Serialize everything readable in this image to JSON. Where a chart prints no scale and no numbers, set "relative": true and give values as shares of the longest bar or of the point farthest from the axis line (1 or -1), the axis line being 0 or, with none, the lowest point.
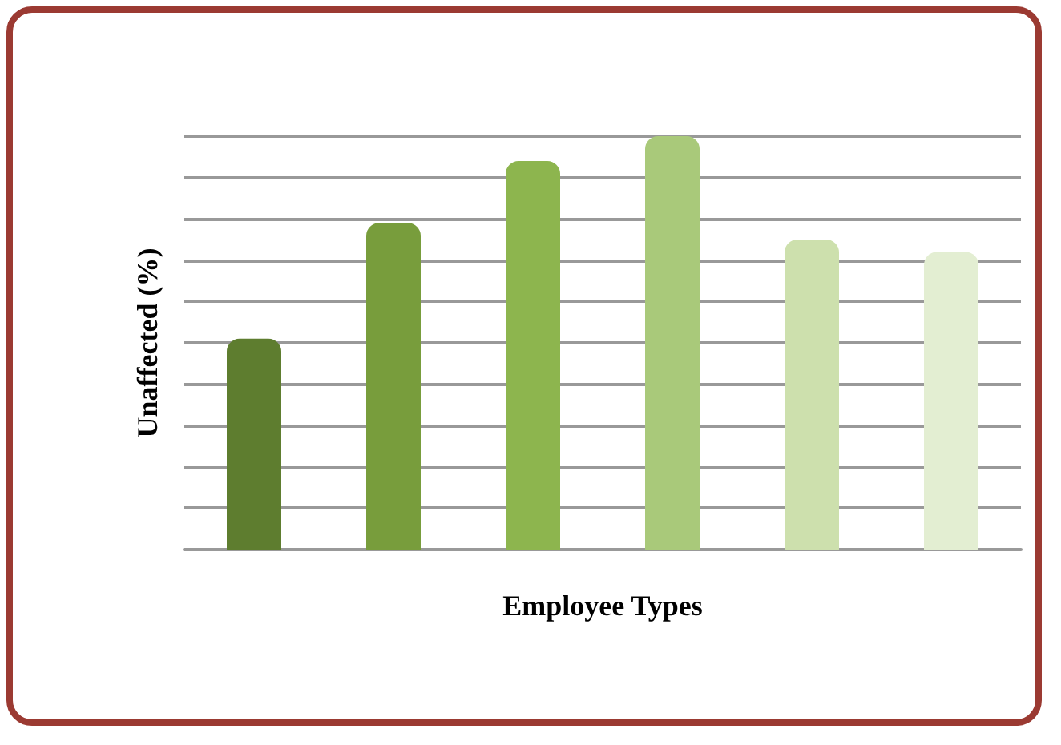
{
  "chart_data": {
    "type": "bar",
    "relative": true,
    "xlabel": "Employee Types",
    "ylabel": "Unaffected (%)",
    "categories": [
      null,
      null,
      null,
      null,
      null,
      null
    ],
    "values": [
      0.51,
      0.79,
      0.94,
      1,
      0.75,
      0.72
    ],
    "colors": [
      "#5e7d2f",
      "#789d3c",
      "#8db54e",
      "#a9c97a",
      "#cde0ad",
      "#e3eed2"
    ],
    "grid": "y"
  }
}
